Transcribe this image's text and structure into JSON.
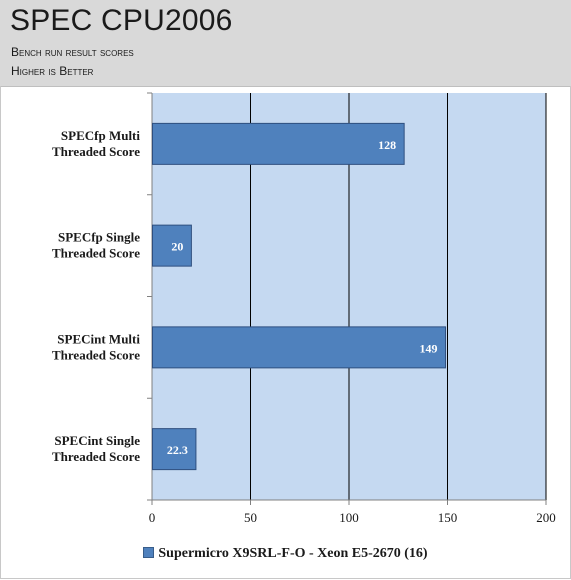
{
  "header": {
    "title": "SPEC CPU2006",
    "subtitle_line1": "Bench run result scores",
    "subtitle_line2": "Higher is Better"
  },
  "chart_data": {
    "type": "bar",
    "orientation": "horizontal",
    "categories": [
      [
        "SPECfp Multi",
        "Threaded Score"
      ],
      [
        "SPECfp Single",
        "Threaded Score"
      ],
      [
        "SPECint Multi",
        "Threaded Score"
      ],
      [
        "SPECint Single",
        "Threaded Score"
      ]
    ],
    "series": [
      {
        "name": "Supermicro X9SRL-F-O  - Xeon E5-2670 (16)",
        "values": [
          128,
          20,
          149,
          22.3
        ]
      }
    ],
    "value_labels": [
      "128",
      "20",
      "149",
      "22.3"
    ],
    "xlim": [
      0,
      200
    ],
    "xticks": [
      0,
      50,
      100,
      150,
      200
    ],
    "grid": true,
    "legend_position": "bottom",
    "colors": {
      "plot_background": "#c5d9f1",
      "bar_fill": "#4f81bd",
      "bar_stroke": "#2f4f7f",
      "gridline": "#000000"
    }
  }
}
